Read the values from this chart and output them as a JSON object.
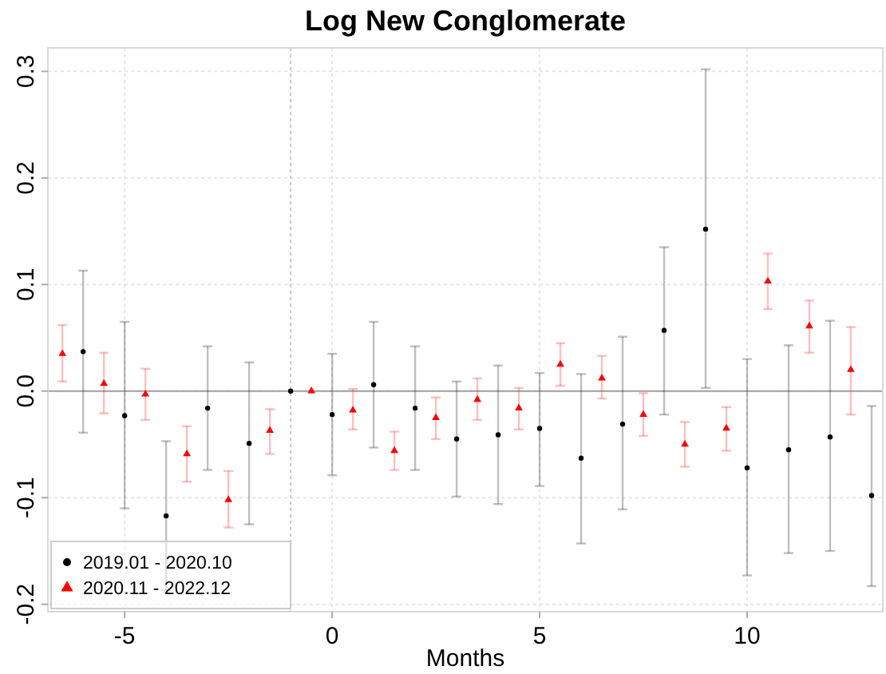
{
  "chart_data": {
    "type": "scatter",
    "title": "Log New Conglomerate",
    "xlabel": "Months",
    "xlim": [
      -6.85,
      13.27
    ],
    "ylim": [
      -0.207,
      0.322
    ],
    "xticks": [
      -5,
      0,
      5,
      10
    ],
    "yticks": [
      -0.2,
      -0.1,
      {
        "value": 0,
        "label": "0.0"
      },
      0.1,
      0.2,
      0.3
    ],
    "grid": true,
    "legend": "bottom left",
    "ref_lines": [
      {
        "axis": "x",
        "value": -1,
        "color": "#c8c8c8",
        "line_style": "dotted"
      },
      {
        "axis": "y",
        "value": 0,
        "color": "#a0a0a0",
        "line_style": "solid"
      }
    ],
    "series": [
      {
        "name": "2019.01 - 2020.10",
        "color": "#000000",
        "marker": "circle",
        "x": [
          -6,
          -5,
          -4,
          -3,
          -2,
          -1,
          0,
          1,
          2,
          3,
          4,
          5,
          6,
          7,
          8,
          9,
          10,
          11,
          12,
          13
        ],
        "values": [
          0.037,
          -0.023,
          -0.117,
          -0.016,
          -0.049,
          0,
          -0.022,
          0.006,
          -0.016,
          -0.045,
          -0.041,
          -0.035,
          -0.063,
          -0.031,
          0.057,
          0.152,
          -0.072,
          -0.055,
          -0.043,
          -0.098
        ],
        "errors": [
          [
            -0.039,
            0.113
          ],
          [
            -0.11,
            0.065
          ],
          [
            -0.187,
            -0.047
          ],
          [
            -0.074,
            0.042
          ],
          [
            -0.125,
            0.027
          ],
          null,
          [
            -0.079,
            0.035
          ],
          [
            -0.053,
            0.065
          ],
          [
            -0.074,
            0.042
          ],
          [
            -0.099,
            0.009
          ],
          [
            -0.106,
            0.024
          ],
          [
            -0.089,
            0.017
          ],
          [
            -0.143,
            0.016
          ],
          [
            -0.111,
            0.051
          ],
          [
            -0.022,
            0.135
          ],
          [
            0.003,
            0.302
          ],
          [
            -0.173,
            0.03
          ],
          [
            -0.152,
            0.043
          ],
          [
            -0.15,
            0.066
          ],
          [
            -0.183,
            -0.014
          ]
        ]
      },
      {
        "name": "2020.11 - 2022.12",
        "color": "#ff0000",
        "marker": "triangle",
        "x": [
          -6.5,
          -5.5,
          -4.5,
          -3.5,
          -2.5,
          -1.5,
          -0.5,
          0.5,
          1.5,
          2.5,
          3.5,
          4.5,
          5.5,
          6.5,
          7.5,
          8.5,
          9.5,
          10.5,
          11.5,
          12.5
        ],
        "values": [
          0.035,
          0.007,
          -0.003,
          -0.059,
          -0.102,
          -0.037,
          0,
          -0.018,
          -0.056,
          -0.025,
          -0.008,
          -0.016,
          0.025,
          0.012,
          -0.022,
          -0.05,
          -0.035,
          0.103,
          0.061,
          0.02
        ],
        "errors": [
          [
            0.009,
            0.062
          ],
          [
            -0.021,
            0.036
          ],
          [
            -0.027,
            0.021
          ],
          [
            -0.085,
            -0.033
          ],
          [
            -0.128,
            -0.075
          ],
          [
            -0.059,
            -0.017
          ],
          null,
          [
            -0.036,
            0.002
          ],
          [
            -0.074,
            -0.038
          ],
          [
            -0.045,
            -0.006
          ],
          [
            -0.027,
            0.012
          ],
          [
            -0.036,
            0.003
          ],
          [
            0.005,
            0.045
          ],
          [
            -0.007,
            0.033
          ],
          [
            -0.042,
            -0.002
          ],
          [
            -0.071,
            -0.029
          ],
          [
            -0.056,
            -0.015
          ],
          [
            0.077,
            0.129
          ],
          [
            0.036,
            0.085
          ],
          [
            -0.022,
            0.06
          ]
        ]
      }
    ]
  }
}
